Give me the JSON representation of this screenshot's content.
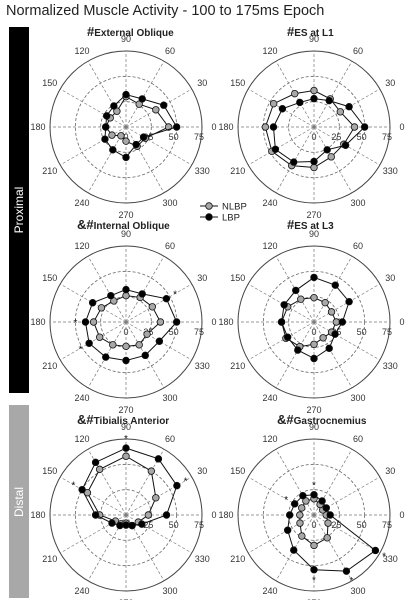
{
  "title": "Normalized Muscle Activity - 100 to 175ms Epoch",
  "group_labels": {
    "proximal": "Proximal",
    "distal": "Distal"
  },
  "colors": {
    "nlbp": "#a8a8a8",
    "lbp": "#000000",
    "proximal_bar": "#000000",
    "distal_bar": "#a8a8a8",
    "grid": "#444444"
  },
  "legend": {
    "items": [
      "NLBP",
      "LBP"
    ]
  },
  "chart_data": [
    {
      "type": "polar-line",
      "title": "External Oblique",
      "prefix": "#",
      "angle_ticks": [
        "0",
        "30",
        "60",
        "90",
        "120",
        "150",
        "180",
        "210",
        "240",
        "270",
        "300",
        "330"
      ],
      "radial_ticks": [
        "25",
        "50",
        "75"
      ],
      "rlim": [
        0,
        75
      ],
      "angles": [
        0,
        30,
        60,
        90,
        120,
        150,
        180,
        210,
        240,
        270,
        300,
        330
      ],
      "series": [
        {
          "name": "NLBP",
          "values": [
            42,
            34,
            26,
            30,
            18,
            18,
            20,
            16,
            10,
            14,
            22,
            22
          ]
        },
        {
          "name": "LBP",
          "values": [
            50,
            43,
            32,
            32,
            24,
            22,
            20,
            24,
            26,
            30,
            20,
            20
          ]
        }
      ],
      "sig_markers": []
    },
    {
      "type": "polar-line",
      "title": "ES at L1",
      "prefix": "#",
      "angle_ticks": [
        "0",
        "30",
        "60",
        "90",
        "120",
        "150",
        "180",
        "210",
        "240",
        "270",
        "300",
        "330"
      ],
      "radial_ticks": [
        "25",
        "50",
        "75"
      ],
      "rlim": [
        0,
        75
      ],
      "angles": [
        0,
        30,
        60,
        90,
        120,
        150,
        180,
        210,
        240,
        270,
        300,
        330
      ],
      "series": [
        {
          "name": "NLBP",
          "values": [
            40,
            30,
            32,
            36,
            38,
            46,
            48,
            48,
            44,
            40,
            34,
            34
          ]
        },
        {
          "name": "LBP",
          "values": [
            50,
            40,
            30,
            28,
            28,
            36,
            40,
            44,
            40,
            34,
            26,
            36
          ]
        }
      ],
      "sig_markers": []
    },
    {
      "type": "polar-line",
      "title": "Internal Oblique",
      "prefix": "&#",
      "angle_ticks": [
        "0",
        "30",
        "60",
        "90",
        "120",
        "150",
        "180",
        "210",
        "240",
        "270",
        "300",
        "330"
      ],
      "radial_ticks": [
        "25",
        "50",
        "75"
      ],
      "rlim": [
        0,
        75
      ],
      "angles": [
        0,
        30,
        60,
        90,
        120,
        150,
        180,
        210,
        240,
        270,
        300,
        330
      ],
      "series": [
        {
          "name": "NLBP",
          "values": [
            34,
            30,
            28,
            26,
            24,
            28,
            32,
            30,
            26,
            24,
            26,
            24
          ]
        },
        {
          "name": "LBP",
          "values": [
            50,
            46,
            32,
            32,
            30,
            38,
            40,
            42,
            40,
            38,
            38,
            38
          ]
        }
      ],
      "sig_markers": [
        30,
        180,
        210
      ]
    },
    {
      "type": "polar-line",
      "title": "ES at L3",
      "prefix": "#",
      "angle_ticks": [
        "0",
        "30",
        "60",
        "90",
        "120",
        "150",
        "180",
        "210",
        "240",
        "270",
        "300",
        "330"
      ],
      "radial_ticks": [
        "25",
        "50",
        "75"
      ],
      "rlim": [
        0,
        75
      ],
      "angles": [
        0,
        30,
        60,
        90,
        120,
        150,
        180,
        210,
        240,
        270,
        300,
        330
      ],
      "series": [
        {
          "name": "NLBP",
          "values": [
            22,
            20,
            22,
            24,
            26,
            30,
            32,
            32,
            28,
            22,
            18,
            20
          ]
        },
        {
          "name": "LBP",
          "values": [
            28,
            40,
            42,
            44,
            36,
            34,
            32,
            30,
            32,
            36,
            30,
            24
          ]
        }
      ],
      "sig_markers": []
    },
    {
      "type": "polar-line",
      "title": "Tibialis Anterior",
      "prefix": "&#",
      "angle_ticks": [
        "0",
        "30",
        "60",
        "90",
        "120",
        "150",
        "180",
        "210",
        "240",
        "270",
        "300",
        "330"
      ],
      "radial_ticks": [
        "25",
        "50",
        "75"
      ],
      "rlim": [
        0,
        75
      ],
      "angles": [
        0,
        30,
        60,
        90,
        120,
        150,
        180,
        210,
        240,
        270,
        300,
        330
      ],
      "series": [
        {
          "name": "NLBP",
          "values": [
            22,
            34,
            50,
            58,
            52,
            44,
            26,
            12,
            10,
            8,
            12,
            14
          ]
        },
        {
          "name": "LBP",
          "values": [
            40,
            58,
            64,
            66,
            60,
            50,
            30,
            16,
            12,
            10,
            12,
            18
          ]
        }
      ],
      "sig_markers": [
        30,
        90,
        150
      ]
    },
    {
      "type": "polar-line",
      "title": "Gastrocnemius",
      "prefix": "&#",
      "angle_ticks": [
        "0",
        "30",
        "60",
        "90",
        "120",
        "150",
        "180",
        "210",
        "240",
        "270",
        "300",
        "330"
      ],
      "radial_ticks": [
        "25",
        "50",
        "75"
      ],
      "rlim": [
        0,
        75
      ],
      "angles": [
        0,
        30,
        60,
        90,
        120,
        150,
        180,
        210,
        240,
        270,
        300,
        330
      ],
      "series": [
        {
          "name": "NLBP",
          "values": [
            12,
            10,
            12,
            16,
            16,
            14,
            14,
            16,
            24,
            30,
            26,
            16
          ]
        },
        {
          "name": "LBP",
          "values": [
            16,
            14,
            16,
            20,
            22,
            22,
            24,
            30,
            40,
            54,
            64,
            70
          ]
        }
      ],
      "sig_markers": [
        90,
        150,
        270,
        300,
        330
      ]
    }
  ]
}
